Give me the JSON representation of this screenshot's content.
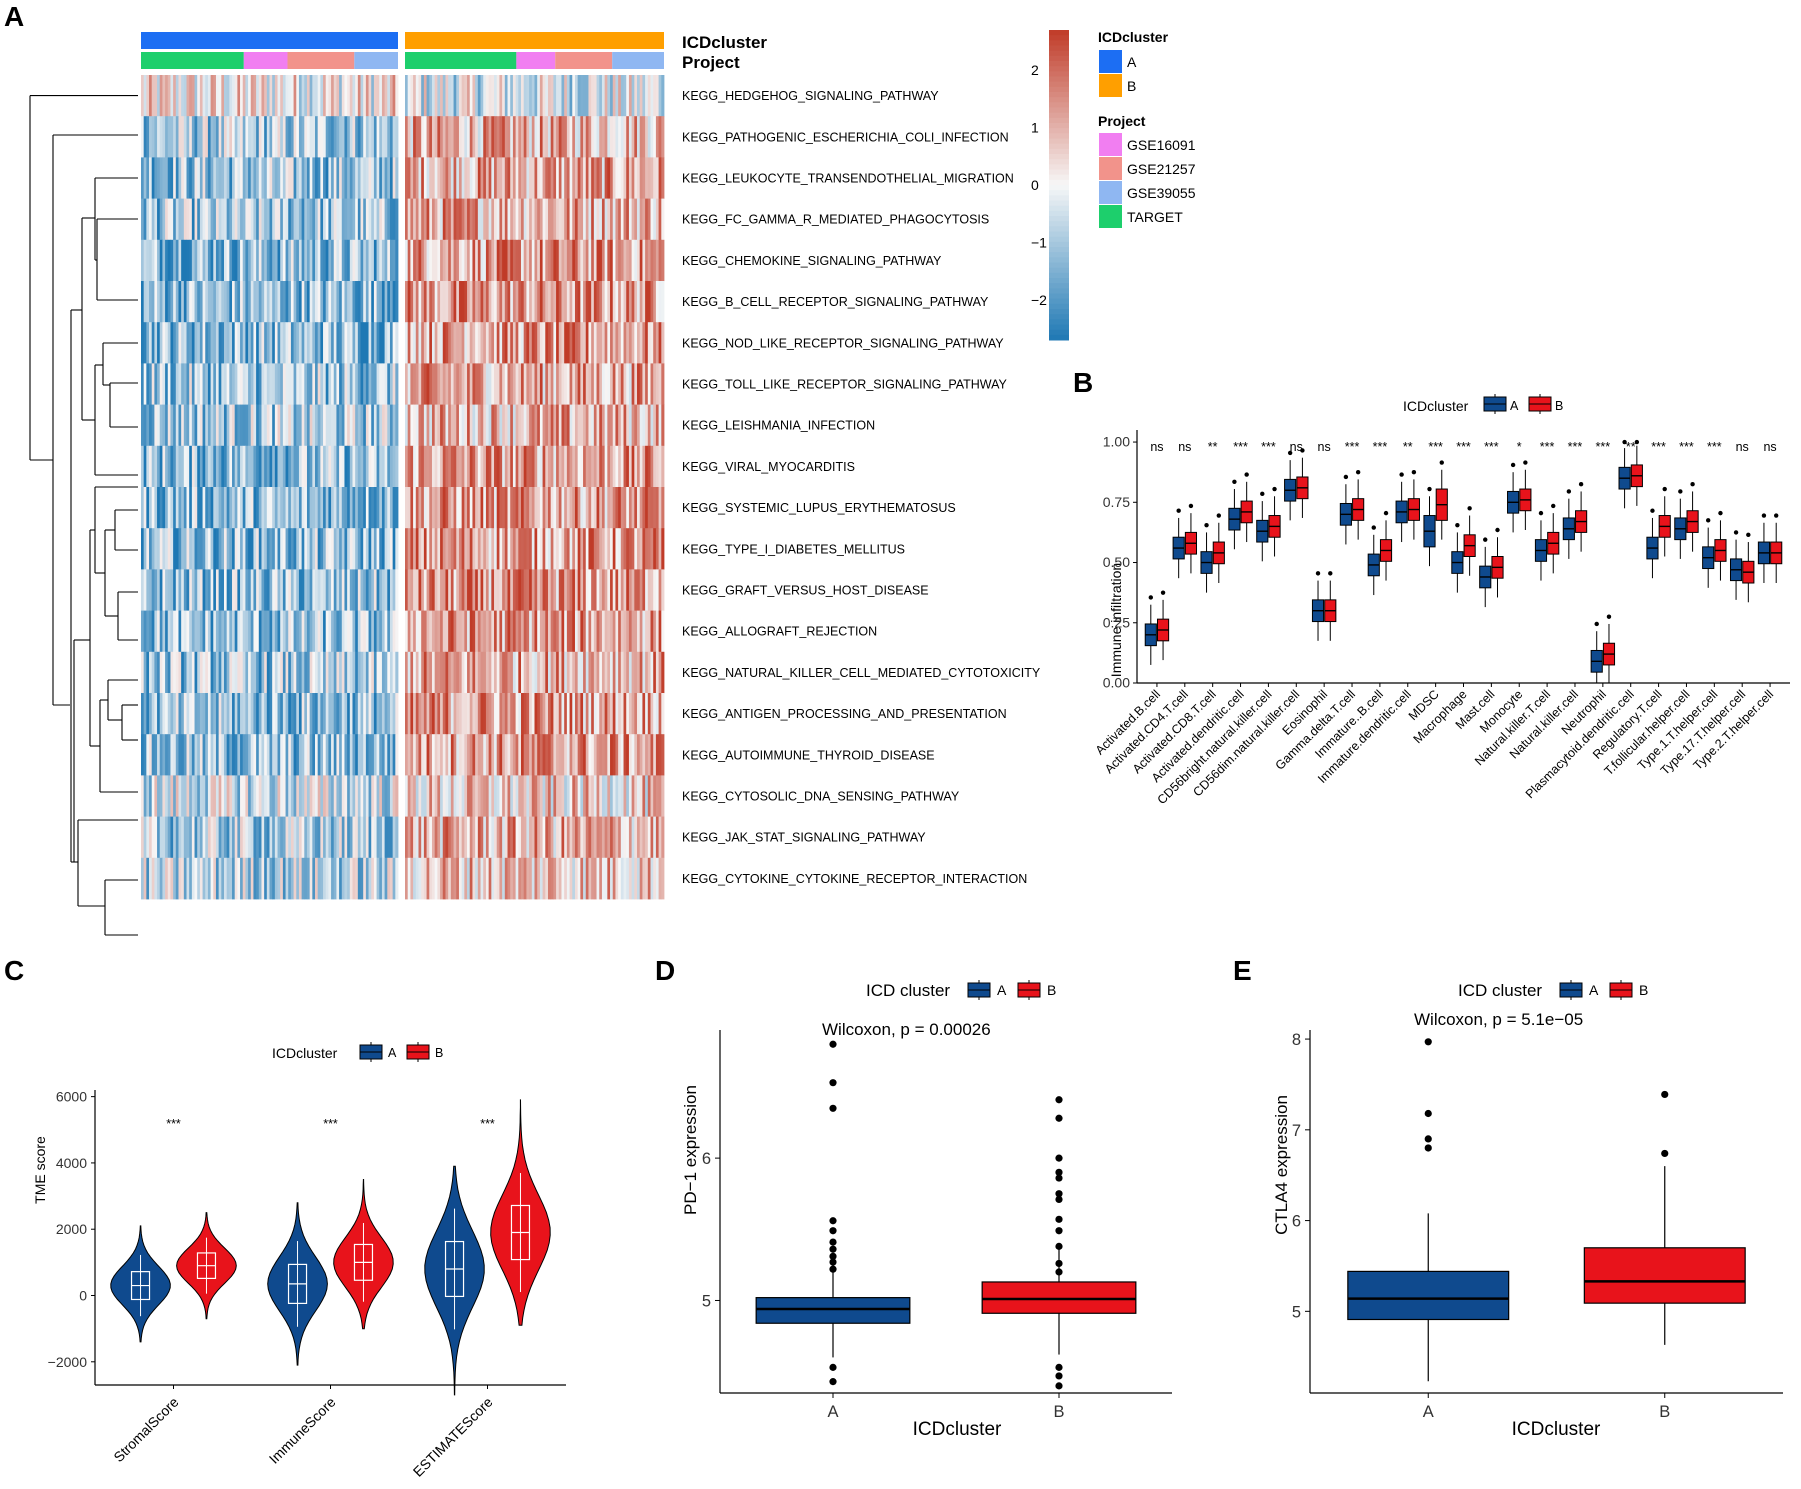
{
  "panels": {
    "a": "A",
    "b": "B",
    "c": "C",
    "d": "D",
    "e": "E"
  },
  "colors": {
    "cluster_A": "#1c6ef3",
    "cluster_B": "#ff9f00",
    "GSE16091": "#f17ef1",
    "GSE21257": "#f2938b",
    "GSE39055": "#8fb7f2",
    "TARGET": "#1dcf6c",
    "heat_high": "#c03b28",
    "heat_low": "#1e78b4",
    "box_A": "#0f4a8e",
    "box_B": "#e8131b"
  },
  "chart_data": [
    {
      "type": "heatmap",
      "panel": "A",
      "annotation_labels": [
        "ICDcluster",
        "Project"
      ],
      "rows": [
        "KEGG_HEDGEHOG_SIGNALING_PATHWAY",
        "KEGG_PATHOGENIC_ESCHERICHIA_COLI_INFECTION",
        "KEGG_LEUKOCYTE_TRANSENDOTHELIAL_MIGRATION",
        "KEGG_FC_GAMMA_R_MEDIATED_PHAGOCYTOSIS",
        "KEGG_CHEMOKINE_SIGNALING_PATHWAY",
        "KEGG_B_CELL_RECEPTOR_SIGNALING_PATHWAY",
        "KEGG_NOD_LIKE_RECEPTOR_SIGNALING_PATHWAY",
        "KEGG_TOLL_LIKE_RECEPTOR_SIGNALING_PATHWAY",
        "KEGG_LEISHMANIA_INFECTION",
        "KEGG_VIRAL_MYOCARDITIS",
        "KEGG_SYSTEMIC_LUPUS_ERYTHEMATOSUS",
        "KEGG_TYPE_I_DIABETES_MELLITUS",
        "KEGG_GRAFT_VERSUS_HOST_DISEASE",
        "KEGG_ALLOGRAFT_REJECTION",
        "KEGG_NATURAL_KILLER_CELL_MEDIATED_CYTOTOXICITY",
        "KEGG_ANTIGEN_PROCESSING_AND_PRESENTATION",
        "KEGG_AUTOIMMUNE_THYROID_DISEASE",
        "KEGG_CYTOSOLIC_DNA_SENSING_PATHWAY",
        "KEGG_JAK_STAT_SIGNALING_PATHWAY",
        "KEGG_CYTOKINE_CYTOKINE_RECEPTOR_INTERACTION"
      ],
      "row_mean_A": [
        0.1,
        -0.6,
        -0.7,
        -0.7,
        -0.8,
        -0.8,
        -0.8,
        -0.7,
        -0.6,
        -0.8,
        -0.8,
        -0.8,
        -0.8,
        -0.8,
        -0.7,
        -0.8,
        -0.8,
        -0.3,
        -0.6,
        -0.5
      ],
      "row_mean_B": [
        -0.2,
        0.6,
        0.7,
        0.7,
        0.8,
        0.8,
        0.8,
        0.7,
        0.6,
        0.8,
        0.8,
        0.8,
        0.8,
        0.8,
        0.7,
        0.8,
        0.8,
        0.3,
        0.6,
        0.5
      ],
      "n_columns_A": 96,
      "n_columns_B": 96,
      "project_split_A": {
        "TARGET": 0.4,
        "GSE16091": 0.17,
        "GSE21257": 0.26,
        "GSE39055": 0.17
      },
      "project_split_B": {
        "TARGET": 0.43,
        "GSE16091": 0.15,
        "GSE21257": 0.22,
        "GSE39055": 0.2
      },
      "colorbar": {
        "ticks": [
          2,
          1,
          0,
          -1,
          -2
        ],
        "tick_labels": [
          "2",
          "1",
          "0",
          "−1",
          "−2"
        ],
        "range": [
          -2.7,
          2.7
        ]
      },
      "legend": {
        "cluster_title": "ICDcluster",
        "cluster_items": [
          "A",
          "B"
        ],
        "project_title": "Project",
        "project_items": [
          "GSE16091",
          "GSE21257",
          "GSE39055",
          "TARGET"
        ]
      }
    },
    {
      "type": "boxplot",
      "panel": "B",
      "legend_title": "ICDcluster",
      "legend_items": [
        "A",
        "B"
      ],
      "ylabel": "Immune infiltration",
      "ylim": [
        0,
        1.05
      ],
      "yticks": [
        0,
        0.25,
        0.5,
        0.75,
        1.0
      ],
      "ytick_labels": [
        "0.00",
        "0.25",
        "0.50",
        "0.75",
        "1.00"
      ],
      "categories": [
        "Activated.B.cell",
        "Activated.CD4.T.cell",
        "Activated.CD8.T.cell",
        "Activated.dendritic.cell",
        "CD56bright.natural.killer.cell",
        "CD56dim.natural.killer.cell",
        "Eosinophil",
        "Gamma.delta.T.cell",
        "Immature..B.cell",
        "Immature.dendritic.cell",
        "MDSC",
        "Macrophage",
        "Mast.cell",
        "Monocyte",
        "Natural.killer.T.cell",
        "Natural.killer.cell",
        "Neutrophil",
        "Plasmacytoid.dendritic.cell",
        "Regulatory.T.cell",
        "T.follicular.helper.cell",
        "Type.1.T.helper.cell",
        "Type.17.T.helper.cell",
        "Type.2.T.helper.cell"
      ],
      "significance": [
        "ns",
        "ns",
        "**",
        "***",
        "***",
        "ns",
        "ns",
        "***",
        "***",
        "**",
        "***",
        "***",
        "***",
        "*",
        "***",
        "***",
        "***",
        "**",
        "***",
        "***",
        "***",
        "ns",
        "ns"
      ],
      "series": [
        {
          "name": "A",
          "median": [
            0.2,
            0.56,
            0.5,
            0.68,
            0.63,
            0.8,
            0.3,
            0.7,
            0.49,
            0.71,
            0.63,
            0.5,
            0.44,
            0.75,
            0.55,
            0.64,
            0.09,
            0.85,
            0.56,
            0.64,
            0.52,
            0.47,
            0.54
          ]
        },
        {
          "name": "B",
          "median": [
            0.22,
            0.58,
            0.54,
            0.71,
            0.65,
            0.81,
            0.3,
            0.72,
            0.55,
            0.72,
            0.74,
            0.57,
            0.48,
            0.76,
            0.58,
            0.67,
            0.12,
            0.86,
            0.65,
            0.67,
            0.55,
            0.46,
            0.54
          ]
        }
      ]
    },
    {
      "type": "violin",
      "panel": "C",
      "legend_title": "ICDcluster",
      "legend_items": [
        "A",
        "B"
      ],
      "ylabel": "TME score",
      "ylim": [
        -2700,
        6200
      ],
      "yticks": [
        -2000,
        0,
        2000,
        4000,
        6000
      ],
      "ytick_labels": [
        "−2000",
        "0",
        "2000",
        "4000",
        "6000"
      ],
      "categories": [
        "StromalScore",
        "ImmuneScore",
        "ESTIMATEScore"
      ],
      "significance": [
        "***",
        "***",
        "***"
      ],
      "series": [
        {
          "name": "A",
          "median": [
            300,
            350,
            800
          ],
          "min": [
            -1400,
            -2100,
            -3000
          ],
          "max": [
            2100,
            2800,
            3900
          ]
        },
        {
          "name": "B",
          "median": [
            900,
            1000,
            1900
          ],
          "min": [
            -700,
            -1000,
            -900
          ],
          "max": [
            2500,
            3500,
            5900
          ]
        }
      ]
    },
    {
      "type": "boxplot",
      "panel": "D",
      "legend_title": "ICD cluster",
      "legend_items": [
        "A",
        "B"
      ],
      "annotation": "Wilcoxon, p = 0.00026",
      "xlabel": "ICDcluster",
      "ylabel": "PD−1 expression",
      "ylim": [
        4.35,
        6.9
      ],
      "yticks": [
        5,
        6
      ],
      "ytick_labels": [
        "5",
        "6"
      ],
      "categories": [
        "A",
        "B"
      ],
      "series": [
        {
          "name": "A",
          "q1": 4.84,
          "median": 4.94,
          "q3": 5.02,
          "whisker_low": 4.6,
          "whisker_high": 5.3,
          "outliers": [
            4.43,
            4.53,
            5.22,
            5.27,
            5.31,
            5.36,
            5.41,
            5.49,
            5.56,
            6.35,
            6.53,
            6.8
          ]
        },
        {
          "name": "B",
          "q1": 4.91,
          "median": 5.01,
          "q3": 5.13,
          "whisker_low": 4.62,
          "whisker_high": 5.38,
          "outliers": [
            4.4,
            4.47,
            4.53,
            5.2,
            5.26,
            5.38,
            5.49,
            5.57,
            5.71,
            5.75,
            5.86,
            5.9,
            6.0,
            6.28,
            6.41
          ]
        }
      ]
    },
    {
      "type": "boxplot",
      "panel": "E",
      "legend_title": "ICD cluster",
      "legend_items": [
        "A",
        "B"
      ],
      "annotation": "Wilcoxon, p = 5.1e−05",
      "xlabel": "ICDcluster",
      "ylabel": "CTLA4 expression",
      "ylim": [
        4.1,
        8.1
      ],
      "yticks": [
        5,
        6,
        7,
        8
      ],
      "ytick_labels": [
        "5",
        "6",
        "7",
        "8"
      ],
      "categories": [
        "A",
        "B"
      ],
      "series": [
        {
          "name": "A",
          "q1": 4.91,
          "median": 5.14,
          "q3": 5.44,
          "whisker_low": 4.23,
          "whisker_high": 6.08,
          "outliers": [
            6.8,
            6.9,
            7.18,
            7.97
          ]
        },
        {
          "name": "B",
          "q1": 5.09,
          "median": 5.33,
          "q3": 5.7,
          "whisker_low": 4.63,
          "whisker_high": 6.6,
          "outliers": [
            6.74,
            7.39
          ]
        }
      ]
    }
  ]
}
